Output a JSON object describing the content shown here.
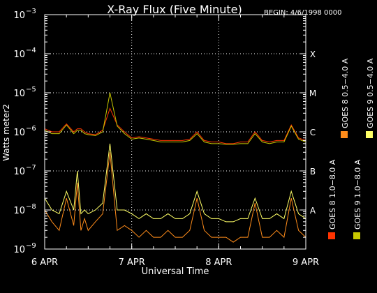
{
  "chart_data": {
    "type": "line",
    "title": "X-Ray Flux (Five Minute)",
    "begin_label": "BEGIN: 4/6/1998 0000",
    "xlabel": "Universal Time",
    "ylabel": "Watts meter2",
    "x_ticks": [
      "6 APR",
      "7 APR",
      "8 APR",
      "9 APR"
    ],
    "xlim_hours": [
      0,
      72
    ],
    "y_scale": "log",
    "ylim": [
      1e-09,
      0.001
    ],
    "y_ticks": [
      {
        "base": "10",
        "exp": "−3"
      },
      {
        "base": "10",
        "exp": "−4"
      },
      {
        "base": "10",
        "exp": "−5"
      },
      {
        "base": "10",
        "exp": "−6"
      },
      {
        "base": "10",
        "exp": "−7"
      },
      {
        "base": "10",
        "exp": "−8"
      },
      {
        "base": "10",
        "exp": "−9"
      }
    ],
    "class_labels": [
      {
        "label": "X",
        "value": 0.0001
      },
      {
        "label": "M",
        "value": 1e-05
      },
      {
        "label": "C",
        "value": 1e-06
      },
      {
        "label": "B",
        "value": 1e-07
      },
      {
        "label": "A",
        "value": 1e-08
      }
    ],
    "grid": "dotted at decades and day boundaries",
    "series": [
      {
        "name": "GOES 8 1.0−8.0 A",
        "color": "#ff3300",
        "x": [
          0,
          2,
          4,
          6,
          8,
          9,
          10,
          11,
          12,
          14,
          16,
          18,
          20,
          22,
          24,
          26,
          28,
          30,
          32,
          34,
          36,
          38,
          40,
          42,
          44,
          46,
          48,
          50,
          52,
          54,
          56,
          58,
          60,
          62,
          64,
          66,
          68,
          70,
          72
        ],
        "values": [
          1.2e-06,
          1e-06,
          1e-06,
          1.6e-06,
          1e-06,
          1.2e-06,
          1.2e-06,
          1e-06,
          9e-07,
          8.5e-07,
          1.1e-06,
          4e-06,
          1.5e-06,
          1e-06,
          7e-07,
          7.5e-07,
          7e-07,
          6.5e-07,
          6e-07,
          6e-07,
          6e-07,
          6e-07,
          6.5e-07,
          1e-06,
          6e-07,
          5.5e-07,
          5.5e-07,
          5e-07,
          5e-07,
          5.5e-07,
          5.5e-07,
          1e-06,
          6e-07,
          5.5e-07,
          6e-07,
          6e-07,
          1.5e-06,
          7e-07,
          6e-07
        ]
      },
      {
        "name": "GOES 8 0.5−4.0 A",
        "color": "#ff8c1a",
        "x": [
          0,
          2,
          4,
          6,
          8,
          9,
          10,
          11,
          12,
          14,
          16,
          18,
          20,
          22,
          24,
          26,
          28,
          30,
          32,
          34,
          36,
          38,
          40,
          42,
          44,
          46,
          48,
          50,
          52,
          54,
          56,
          58,
          60,
          62,
          64,
          66,
          68,
          70,
          72
        ],
        "values": [
          1e-08,
          5e-09,
          3e-09,
          2e-08,
          4e-09,
          5e-08,
          3e-09,
          6e-09,
          3e-09,
          5e-09,
          8e-09,
          3e-07,
          3e-09,
          4e-09,
          3e-09,
          2e-09,
          3e-09,
          2e-09,
          2e-09,
          3e-09,
          2e-09,
          2e-09,
          3e-09,
          2e-08,
          3e-09,
          2e-09,
          2e-09,
          2e-09,
          1.5e-09,
          2e-09,
          2e-09,
          1.5e-08,
          2e-09,
          2e-09,
          3e-09,
          2e-09,
          2e-08,
          3e-09,
          2e-09
        ]
      },
      {
        "name": "GOES 9 1.0−8.0 A",
        "color": "#c8c800",
        "x": [
          0,
          2,
          4,
          6,
          8,
          9,
          10,
          11,
          12,
          14,
          16,
          18,
          20,
          22,
          24,
          26,
          28,
          30,
          32,
          34,
          36,
          38,
          40,
          42,
          44,
          46,
          48,
          50,
          52,
          54,
          56,
          58,
          60,
          62,
          64,
          66,
          68,
          70,
          72
        ],
        "values": [
          1.1e-06,
          9e-07,
          9e-07,
          1.5e-06,
          9e-07,
          1.1e-06,
          1.1e-06,
          9e-07,
          8.5e-07,
          8e-07,
          1e-06,
          1e-05,
          1.4e-06,
          9e-07,
          6.5e-07,
          7e-07,
          6.5e-07,
          6e-07,
          5.5e-07,
          5.5e-07,
          5.5e-07,
          5.5e-07,
          6e-07,
          9e-07,
          5.5e-07,
          5e-07,
          5e-07,
          4.8e-07,
          4.8e-07,
          5e-07,
          5e-07,
          9e-07,
          5.5e-07,
          5e-07,
          5.5e-07,
          5.5e-07,
          1.4e-06,
          6.5e-07,
          5.5e-07
        ]
      },
      {
        "name": "GOES 9 0.5−4.0 A",
        "color": "#ffff66",
        "x": [
          0,
          2,
          4,
          6,
          8,
          9,
          10,
          11,
          12,
          14,
          16,
          18,
          20,
          22,
          24,
          26,
          28,
          30,
          32,
          34,
          36,
          38,
          40,
          42,
          44,
          46,
          48,
          50,
          52,
          54,
          56,
          58,
          60,
          62,
          64,
          66,
          68,
          70,
          72
        ],
        "values": [
          2e-08,
          1e-08,
          8e-09,
          3e-08,
          1e-08,
          1e-07,
          8e-09,
          1e-08,
          8e-09,
          1e-08,
          1.5e-08,
          5e-07,
          1e-08,
          1e-08,
          8e-09,
          6e-09,
          8e-09,
          6e-09,
          6e-09,
          8e-09,
          6e-09,
          6e-09,
          8e-09,
          3e-08,
          8e-09,
          6e-09,
          6e-09,
          5e-09,
          5e-09,
          6e-09,
          6e-09,
          2e-08,
          6e-09,
          6e-09,
          8e-09,
          6e-09,
          3e-08,
          8e-09,
          6e-09
        ]
      }
    ]
  }
}
